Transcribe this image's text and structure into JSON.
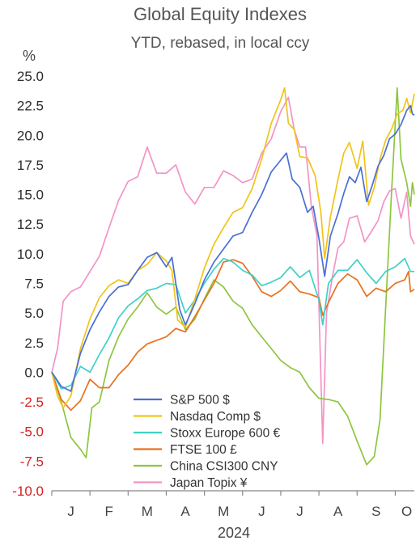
{
  "colors": {
    "positive_tick": "#2b2b2b",
    "negative_tick": "#d42020",
    "axis": "#888888"
  },
  "chart_data": {
    "type": "line",
    "title": "Global Equity Indexes",
    "subtitle": "YTD, rebased, in local ccy",
    "unit": "%",
    "xlabel": "2024",
    "ylim": [
      -10,
      25
    ],
    "yticks": [
      "25.0",
      "22.5",
      "20.0",
      "17.5",
      "15.0",
      "12.5",
      "10.0",
      "7.5",
      "5.0",
      "2.5",
      "0.0",
      "-2.5",
      "-5.0",
      "-7.5",
      "-10.0"
    ],
    "xlim": [
      0,
      9.5
    ],
    "xticks": [
      {
        "label": "J",
        "x": 0.5
      },
      {
        "label": "F",
        "x": 1.5
      },
      {
        "label": "M",
        "x": 2.5
      },
      {
        "label": "A",
        "x": 3.5
      },
      {
        "label": "M",
        "x": 4.5
      },
      {
        "label": "J",
        "x": 5.5
      },
      {
        "label": "J",
        "x": 6.5
      },
      {
        "label": "A",
        "x": 7.5
      },
      {
        "label": "S",
        "x": 8.5
      },
      {
        "label": "O",
        "x": 9.3
      }
    ],
    "legend_position": "bottom-center",
    "grid": false,
    "series": [
      {
        "name": "S&P 500 $",
        "color": "#4a6fd4",
        "points": [
          [
            0.0,
            0.0
          ],
          [
            0.25,
            -1.2
          ],
          [
            0.5,
            -1.6
          ],
          [
            0.75,
            1.6
          ],
          [
            1.0,
            3.6
          ],
          [
            1.25,
            5.1
          ],
          [
            1.5,
            6.4
          ],
          [
            1.75,
            7.2
          ],
          [
            2.0,
            7.4
          ],
          [
            2.25,
            8.6
          ],
          [
            2.5,
            9.7
          ],
          [
            2.75,
            10.1
          ],
          [
            3.0,
            8.9
          ],
          [
            3.15,
            9.7
          ],
          [
            3.35,
            5.3
          ],
          [
            3.5,
            4.0
          ],
          [
            3.75,
            5.8
          ],
          [
            4.0,
            7.8
          ],
          [
            4.25,
            9.3
          ],
          [
            4.5,
            10.4
          ],
          [
            4.75,
            11.5
          ],
          [
            5.0,
            11.8
          ],
          [
            5.25,
            13.5
          ],
          [
            5.5,
            15.0
          ],
          [
            5.75,
            16.9
          ],
          [
            5.95,
            17.7
          ],
          [
            6.15,
            18.5
          ],
          [
            6.3,
            16.3
          ],
          [
            6.5,
            15.6
          ],
          [
            6.7,
            13.5
          ],
          [
            6.85,
            14.0
          ],
          [
            7.0,
            11.3
          ],
          [
            7.15,
            8.1
          ],
          [
            7.3,
            11.5
          ],
          [
            7.5,
            13.4
          ],
          [
            7.65,
            15.1
          ],
          [
            7.8,
            16.5
          ],
          [
            7.95,
            16.0
          ],
          [
            8.1,
            17.3
          ],
          [
            8.25,
            14.4
          ],
          [
            8.4,
            15.8
          ],
          [
            8.55,
            17.4
          ],
          [
            8.7,
            18.3
          ],
          [
            8.85,
            19.7
          ],
          [
            9.0,
            20.1
          ],
          [
            9.15,
            20.9
          ],
          [
            9.3,
            22.1
          ],
          [
            9.4,
            22.5
          ],
          [
            9.45,
            21.8
          ],
          [
            9.5,
            21.7
          ]
        ]
      },
      {
        "name": "Nasdaq Comp $",
        "color": "#f0c419",
        "points": [
          [
            0.0,
            0.0
          ],
          [
            0.15,
            -2.0
          ],
          [
            0.3,
            -3.0
          ],
          [
            0.5,
            -2.0
          ],
          [
            0.75,
            2.0
          ],
          [
            1.0,
            4.5
          ],
          [
            1.25,
            6.3
          ],
          [
            1.5,
            7.3
          ],
          [
            1.75,
            7.8
          ],
          [
            2.0,
            7.5
          ],
          [
            2.25,
            8.6
          ],
          [
            2.5,
            9.1
          ],
          [
            2.75,
            10.1
          ],
          [
            3.0,
            9.4
          ],
          [
            3.15,
            8.6
          ],
          [
            3.3,
            4.4
          ],
          [
            3.5,
            3.8
          ],
          [
            3.75,
            6.2
          ],
          [
            4.0,
            8.8
          ],
          [
            4.25,
            10.8
          ],
          [
            4.5,
            12.2
          ],
          [
            4.75,
            13.5
          ],
          [
            5.0,
            13.9
          ],
          [
            5.25,
            15.5
          ],
          [
            5.5,
            18.0
          ],
          [
            5.75,
            21.0
          ],
          [
            6.0,
            23.0
          ],
          [
            6.1,
            24.0
          ],
          [
            6.2,
            21.0
          ],
          [
            6.35,
            20.5
          ],
          [
            6.5,
            18.2
          ],
          [
            6.7,
            18.1
          ],
          [
            6.9,
            16.6
          ],
          [
            7.05,
            13.5
          ],
          [
            7.15,
            9.6
          ],
          [
            7.3,
            13.1
          ],
          [
            7.5,
            16.3
          ],
          [
            7.65,
            18.5
          ],
          [
            7.8,
            19.4
          ],
          [
            8.0,
            17.2
          ],
          [
            8.15,
            19.5
          ],
          [
            8.3,
            14.1
          ],
          [
            8.45,
            15.6
          ],
          [
            8.6,
            18.0
          ],
          [
            8.75,
            19.6
          ],
          [
            8.9,
            20.5
          ],
          [
            9.05,
            21.8
          ],
          [
            9.2,
            22.1
          ],
          [
            9.3,
            23.1
          ],
          [
            9.4,
            21.9
          ],
          [
            9.5,
            23.5
          ]
        ]
      },
      {
        "name": "Stoxx Europe 600 €",
        "color": "#3fd0c8",
        "points": [
          [
            0.0,
            0.0
          ],
          [
            0.25,
            -1.4
          ],
          [
            0.5,
            -1.1
          ],
          [
            0.75,
            0.5
          ],
          [
            1.0,
            0.0
          ],
          [
            1.25,
            1.5
          ],
          [
            1.5,
            2.9
          ],
          [
            1.75,
            4.6
          ],
          [
            2.0,
            5.6
          ],
          [
            2.25,
            6.2
          ],
          [
            2.5,
            6.9
          ],
          [
            2.75,
            7.1
          ],
          [
            3.0,
            7.5
          ],
          [
            3.25,
            7.4
          ],
          [
            3.5,
            5.0
          ],
          [
            3.75,
            6.1
          ],
          [
            4.0,
            7.5
          ],
          [
            4.25,
            8.7
          ],
          [
            4.5,
            9.6
          ],
          [
            4.75,
            9.3
          ],
          [
            5.0,
            8.6
          ],
          [
            5.25,
            8.2
          ],
          [
            5.5,
            7.3
          ],
          [
            5.75,
            7.6
          ],
          [
            6.0,
            8.0
          ],
          [
            6.25,
            8.9
          ],
          [
            6.5,
            8.0
          ],
          [
            6.75,
            8.6
          ],
          [
            7.0,
            6.1
          ],
          [
            7.1,
            4.0
          ],
          [
            7.25,
            7.5
          ],
          [
            7.5,
            8.6
          ],
          [
            7.75,
            8.6
          ],
          [
            8.0,
            9.5
          ],
          [
            8.25,
            8.4
          ],
          [
            8.5,
            7.5
          ],
          [
            8.75,
            8.5
          ],
          [
            9.0,
            8.9
          ],
          [
            9.25,
            9.6
          ],
          [
            9.4,
            8.5
          ],
          [
            9.5,
            8.5
          ]
        ]
      },
      {
        "name": "FTSE 100 £",
        "color": "#e8701e",
        "points": [
          [
            0.0,
            0.0
          ],
          [
            0.25,
            -2.3
          ],
          [
            0.5,
            -3.2
          ],
          [
            0.75,
            -2.4
          ],
          [
            1.0,
            -0.6
          ],
          [
            1.25,
            -1.3
          ],
          [
            1.5,
            -1.3
          ],
          [
            1.75,
            -0.2
          ],
          [
            2.0,
            0.6
          ],
          [
            2.25,
            1.7
          ],
          [
            2.5,
            2.4
          ],
          [
            2.75,
            2.7
          ],
          [
            3.0,
            3.0
          ],
          [
            3.25,
            3.7
          ],
          [
            3.5,
            3.4
          ],
          [
            3.75,
            4.7
          ],
          [
            4.0,
            6.1
          ],
          [
            4.25,
            7.5
          ],
          [
            4.5,
            9.3
          ],
          [
            4.75,
            9.5
          ],
          [
            5.0,
            9.2
          ],
          [
            5.25,
            8.1
          ],
          [
            5.5,
            6.8
          ],
          [
            5.75,
            6.4
          ],
          [
            6.0,
            6.9
          ],
          [
            6.25,
            7.7
          ],
          [
            6.5,
            6.8
          ],
          [
            6.75,
            6.6
          ],
          [
            7.0,
            6.3
          ],
          [
            7.1,
            4.8
          ],
          [
            7.25,
            5.9
          ],
          [
            7.5,
            7.5
          ],
          [
            7.75,
            8.3
          ],
          [
            8.0,
            7.8
          ],
          [
            8.25,
            6.4
          ],
          [
            8.5,
            7.1
          ],
          [
            8.75,
            6.8
          ],
          [
            9.0,
            7.5
          ],
          [
            9.25,
            7.8
          ],
          [
            9.35,
            8.5
          ],
          [
            9.4,
            6.8
          ],
          [
            9.5,
            7.0
          ]
        ]
      },
      {
        "name": "China CSI300 CNY",
        "color": "#8dc63f",
        "points": [
          [
            0.0,
            0.0
          ],
          [
            0.25,
            -2.5
          ],
          [
            0.5,
            -5.5
          ],
          [
            0.75,
            -6.5
          ],
          [
            0.9,
            -7.2
          ],
          [
            1.05,
            -3.0
          ],
          [
            1.25,
            -2.5
          ],
          [
            1.5,
            1.0
          ],
          [
            1.75,
            3.0
          ],
          [
            2.0,
            4.5
          ],
          [
            2.25,
            5.5
          ],
          [
            2.5,
            6.7
          ],
          [
            2.75,
            5.5
          ],
          [
            3.0,
            4.9
          ],
          [
            3.25,
            5.5
          ],
          [
            3.5,
            3.6
          ],
          [
            3.75,
            4.5
          ],
          [
            4.0,
            6.2
          ],
          [
            4.25,
            7.8
          ],
          [
            4.5,
            7.2
          ],
          [
            4.75,
            6.0
          ],
          [
            5.0,
            5.4
          ],
          [
            5.25,
            4.0
          ],
          [
            5.5,
            3.0
          ],
          [
            5.75,
            2.0
          ],
          [
            6.0,
            1.0
          ],
          [
            6.25,
            0.4
          ],
          [
            6.5,
            0.0
          ],
          [
            6.75,
            -1.3
          ],
          [
            7.0,
            -2.2
          ],
          [
            7.25,
            -2.3
          ],
          [
            7.5,
            -2.5
          ],
          [
            7.75,
            -3.7
          ],
          [
            8.0,
            -5.8
          ],
          [
            8.25,
            -7.8
          ],
          [
            8.45,
            -7.1
          ],
          [
            8.6,
            -4.0
          ],
          [
            8.75,
            5.5
          ],
          [
            8.9,
            15.0
          ],
          [
            9.05,
            24.0
          ],
          [
            9.15,
            18.0
          ],
          [
            9.3,
            16.0
          ],
          [
            9.4,
            14.0
          ],
          [
            9.45,
            16.0
          ],
          [
            9.5,
            15.0
          ]
        ]
      },
      {
        "name": "Japan Topix ¥",
        "color": "#f294c6",
        "points": [
          [
            0.0,
            0.0
          ],
          [
            0.15,
            2.0
          ],
          [
            0.3,
            6.0
          ],
          [
            0.5,
            6.8
          ],
          [
            0.75,
            7.2
          ],
          [
            1.0,
            8.5
          ],
          [
            1.25,
            9.8
          ],
          [
            1.5,
            12.2
          ],
          [
            1.75,
            14.5
          ],
          [
            2.0,
            16.1
          ],
          [
            2.25,
            16.5
          ],
          [
            2.5,
            19.0
          ],
          [
            2.75,
            16.8
          ],
          [
            3.0,
            16.8
          ],
          [
            3.25,
            17.5
          ],
          [
            3.5,
            15.2
          ],
          [
            3.75,
            14.2
          ],
          [
            4.0,
            15.6
          ],
          [
            4.25,
            15.6
          ],
          [
            4.5,
            17.0
          ],
          [
            4.75,
            16.6
          ],
          [
            5.0,
            16.0
          ],
          [
            5.25,
            16.3
          ],
          [
            5.5,
            18.5
          ],
          [
            5.75,
            19.7
          ],
          [
            6.0,
            22.0
          ],
          [
            6.2,
            23.2
          ],
          [
            6.35,
            20.5
          ],
          [
            6.5,
            19.0
          ],
          [
            6.65,
            19.0
          ],
          [
            6.8,
            14.0
          ],
          [
            6.95,
            11.5
          ],
          [
            7.1,
            -6.0
          ],
          [
            7.2,
            5.0
          ],
          [
            7.35,
            8.0
          ],
          [
            7.5,
            10.5
          ],
          [
            7.65,
            11.0
          ],
          [
            7.8,
            13.0
          ],
          [
            8.0,
            13.2
          ],
          [
            8.2,
            11.0
          ],
          [
            8.4,
            12.0
          ],
          [
            8.55,
            12.8
          ],
          [
            8.7,
            14.4
          ],
          [
            8.85,
            15.3
          ],
          [
            9.0,
            15.5
          ],
          [
            9.15,
            13.0
          ],
          [
            9.3,
            15.2
          ],
          [
            9.4,
            11.5
          ],
          [
            9.5,
            10.8
          ]
        ]
      }
    ]
  }
}
